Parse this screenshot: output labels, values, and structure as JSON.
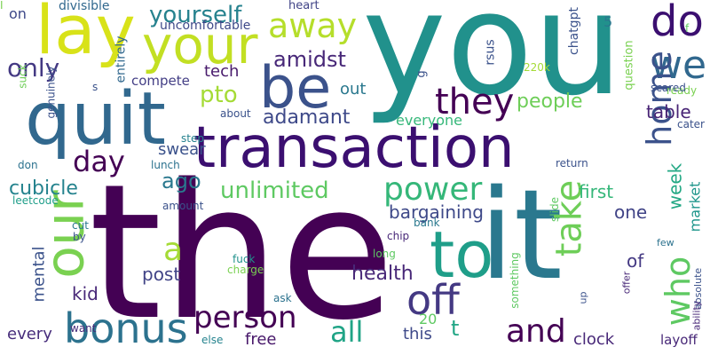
{
  "cloud": {
    "background": "#ffffff",
    "words": [
      {
        "text": "the",
        "color": "#440154",
        "vertical": false
      },
      {
        "text": "you",
        "color": "#21918c",
        "vertical": false
      },
      {
        "text": "transaction",
        "color": "#3b0f70",
        "vertical": false
      },
      {
        "text": "quit",
        "color": "#31688e",
        "vertical": false
      },
      {
        "text": "it",
        "color": "#2a788e",
        "vertical": false
      },
      {
        "text": "lay",
        "color": "#d8e219",
        "vertical": false
      },
      {
        "text": "be",
        "color": "#3b528b",
        "vertical": false
      },
      {
        "text": "your",
        "color": "#c2df23",
        "vertical": false
      },
      {
        "text": "to",
        "color": "#1f9e89",
        "vertical": false
      },
      {
        "text": "our",
        "color": "#7ad151",
        "vertical": true
      },
      {
        "text": "person",
        "color": "#440154",
        "vertical": false
      },
      {
        "text": "off",
        "color": "#443983",
        "vertical": false
      },
      {
        "text": "we",
        "color": "#31688e",
        "vertical": false
      },
      {
        "text": "do",
        "color": "#3b0f70",
        "vertical": false
      },
      {
        "text": "power",
        "color": "#35b779",
        "vertical": false
      },
      {
        "text": "take",
        "color": "#6ece58",
        "vertical": true
      },
      {
        "text": "bonus",
        "color": "#2c728e",
        "vertical": false
      },
      {
        "text": "they",
        "color": "#440154",
        "vertical": false
      },
      {
        "text": "who",
        "color": "#5ec962",
        "vertical": true
      },
      {
        "text": "and",
        "color": "#440154",
        "vertical": false
      },
      {
        "text": "away",
        "color": "#b5de2b",
        "vertical": false
      },
      {
        "text": "home",
        "color": "#3b528b",
        "vertical": true
      },
      {
        "text": "all",
        "color": "#20a486",
        "vertical": false
      },
      {
        "text": "only",
        "color": "#443983",
        "vertical": false
      },
      {
        "text": "day",
        "color": "#440154",
        "vertical": false
      },
      {
        "text": "a",
        "color": "#a5db36",
        "vertical": false
      },
      {
        "text": "unlimited",
        "color": "#5ec962",
        "vertical": false
      },
      {
        "text": "yourself",
        "color": "#26828e",
        "vertical": false
      },
      {
        "text": "ago",
        "color": "#2a788e",
        "vertical": false
      },
      {
        "text": "pto",
        "color": "#a5db36",
        "vertical": false
      },
      {
        "text": "amidst",
        "color": "#482878",
        "vertical": false
      },
      {
        "text": "adamant",
        "color": "#3e4989",
        "vertical": false
      },
      {
        "text": "people",
        "color": "#6ece58",
        "vertical": false
      },
      {
        "text": "health",
        "color": "#482878",
        "vertical": false
      },
      {
        "text": "cubicle",
        "color": "#25838e",
        "vertical": false
      },
      {
        "text": "bargaining",
        "color": "#3e4989",
        "vertical": false
      },
      {
        "text": "week",
        "color": "#22a884",
        "vertical": true
      },
      {
        "text": "market",
        "color": "#1f968b",
        "vertical": true
      },
      {
        "text": "first",
        "color": "#35b779",
        "vertical": false
      },
      {
        "text": "table",
        "color": "#482475",
        "vertical": false
      },
      {
        "text": "one",
        "color": "#414487",
        "vertical": false
      },
      {
        "text": "of",
        "color": "#443983",
        "vertical": false
      },
      {
        "text": "mental",
        "color": "#3b528b",
        "vertical": true
      },
      {
        "text": "post",
        "color": "#414487",
        "vertical": false
      },
      {
        "text": "kid",
        "color": "#482878",
        "vertical": false
      },
      {
        "text": "this",
        "color": "#3e4989",
        "vertical": false
      },
      {
        "text": "t",
        "color": "#21a685",
        "vertical": false
      },
      {
        "text": "every",
        "color": "#472d7b",
        "vertical": false
      },
      {
        "text": "free",
        "color": "#48186a",
        "vertical": false
      },
      {
        "text": "clock",
        "color": "#482878",
        "vertical": false
      },
      {
        "text": "20",
        "color": "#5ec962",
        "vertical": false
      },
      {
        "text": "layoff",
        "color": "#482878",
        "vertical": false
      },
      {
        "text": "tech",
        "color": "#481a6c",
        "vertical": false
      },
      {
        "text": "swear",
        "color": "#3b528b",
        "vertical": false
      },
      {
        "text": "out",
        "color": "#2a788e",
        "vertical": false
      },
      {
        "text": "everyone",
        "color": "#35b779",
        "vertical": false
      },
      {
        "text": "compete",
        "color": "#433e85",
        "vertical": false
      },
      {
        "text": "on",
        "color": "#3e4989",
        "vertical": false
      },
      {
        "text": "divisible",
        "color": "#31688e",
        "vertical": false
      },
      {
        "text": "heart",
        "color": "#414487",
        "vertical": false
      },
      {
        "text": "uncomfortable",
        "color": "#3e4989",
        "vertical": false
      },
      {
        "text": "chatgpt",
        "color": "#3b528b",
        "vertical": true
      },
      {
        "text": "question",
        "color": "#7ad151",
        "vertical": true
      },
      {
        "text": "5",
        "color": "#2a788e",
        "vertical": false
      },
      {
        "text": "f",
        "color": "#5ec962",
        "vertical": false
      },
      {
        "text": "g",
        "color": "#3b528b",
        "vertical": true
      },
      {
        "text": "rsus",
        "color": "#3b528b",
        "vertical": true
      },
      {
        "text": "220k",
        "color": "#a5db36",
        "vertical": false
      },
      {
        "text": "entirely",
        "color": "#31688e",
        "vertical": true
      },
      {
        "text": "s",
        "color": "#3b528b",
        "vertical": false
      },
      {
        "text": "suck",
        "color": "#6ece58",
        "vertical": true
      },
      {
        "text": "if",
        "color": "#472d7b",
        "vertical": false
      },
      {
        "text": "genuinely",
        "color": "#3b528b",
        "vertical": true
      },
      {
        "text": "about",
        "color": "#3b528b",
        "vertical": false
      },
      {
        "text": "step",
        "color": "#26828e",
        "vertical": false
      },
      {
        "text": "don",
        "color": "#2c728e",
        "vertical": false
      },
      {
        "text": "lunch",
        "color": "#2c728e",
        "vertical": false
      },
      {
        "text": "leetcode",
        "color": "#1f9e89",
        "vertical": false
      },
      {
        "text": "amount",
        "color": "#3b528b",
        "vertical": false
      },
      {
        "text": "cut",
        "color": "#2a788e",
        "vertical": false
      },
      {
        "text": "by",
        "color": "#3b528b",
        "vertical": false
      },
      {
        "text": "want",
        "color": "#472d7b",
        "vertical": false
      },
      {
        "text": "else",
        "color": "#25838e",
        "vertical": false
      },
      {
        "text": "long",
        "color": "#5ec962",
        "vertical": false
      },
      {
        "text": "chip",
        "color": "#482878",
        "vertical": false
      },
      {
        "text": "bank",
        "color": "#2a788e",
        "vertical": false
      },
      {
        "text": "charge",
        "color": "#7ad151",
        "vertical": false
      },
      {
        "text": "fuck",
        "color": "#21918c",
        "vertical": false
      },
      {
        "text": "ask",
        "color": "#2c728e",
        "vertical": false
      },
      {
        "text": "something",
        "color": "#5ec962",
        "vertical": true
      },
      {
        "text": "slide",
        "color": "#5ec962",
        "vertical": true
      },
      {
        "text": "return",
        "color": "#3b528b",
        "vertical": false
      },
      {
        "text": "few",
        "color": "#2c728e",
        "vertical": false
      },
      {
        "text": "absolute",
        "color": "#3b528b",
        "vertical": true
      },
      {
        "text": "ability",
        "color": "#482878",
        "vertical": true
      },
      {
        "text": "up",
        "color": "#3b528b",
        "vertical": true
      },
      {
        "text": "offer",
        "color": "#482878",
        "vertical": true
      },
      {
        "text": "ready",
        "color": "#7ad151",
        "vertical": false
      },
      {
        "text": "cater",
        "color": "#3b528b",
        "vertical": false
      },
      {
        "text": "scared",
        "color": "#3b528b",
        "vertical": false
      },
      {
        "text": "I",
        "color": "#7ad151",
        "vertical": false
      }
    ]
  }
}
